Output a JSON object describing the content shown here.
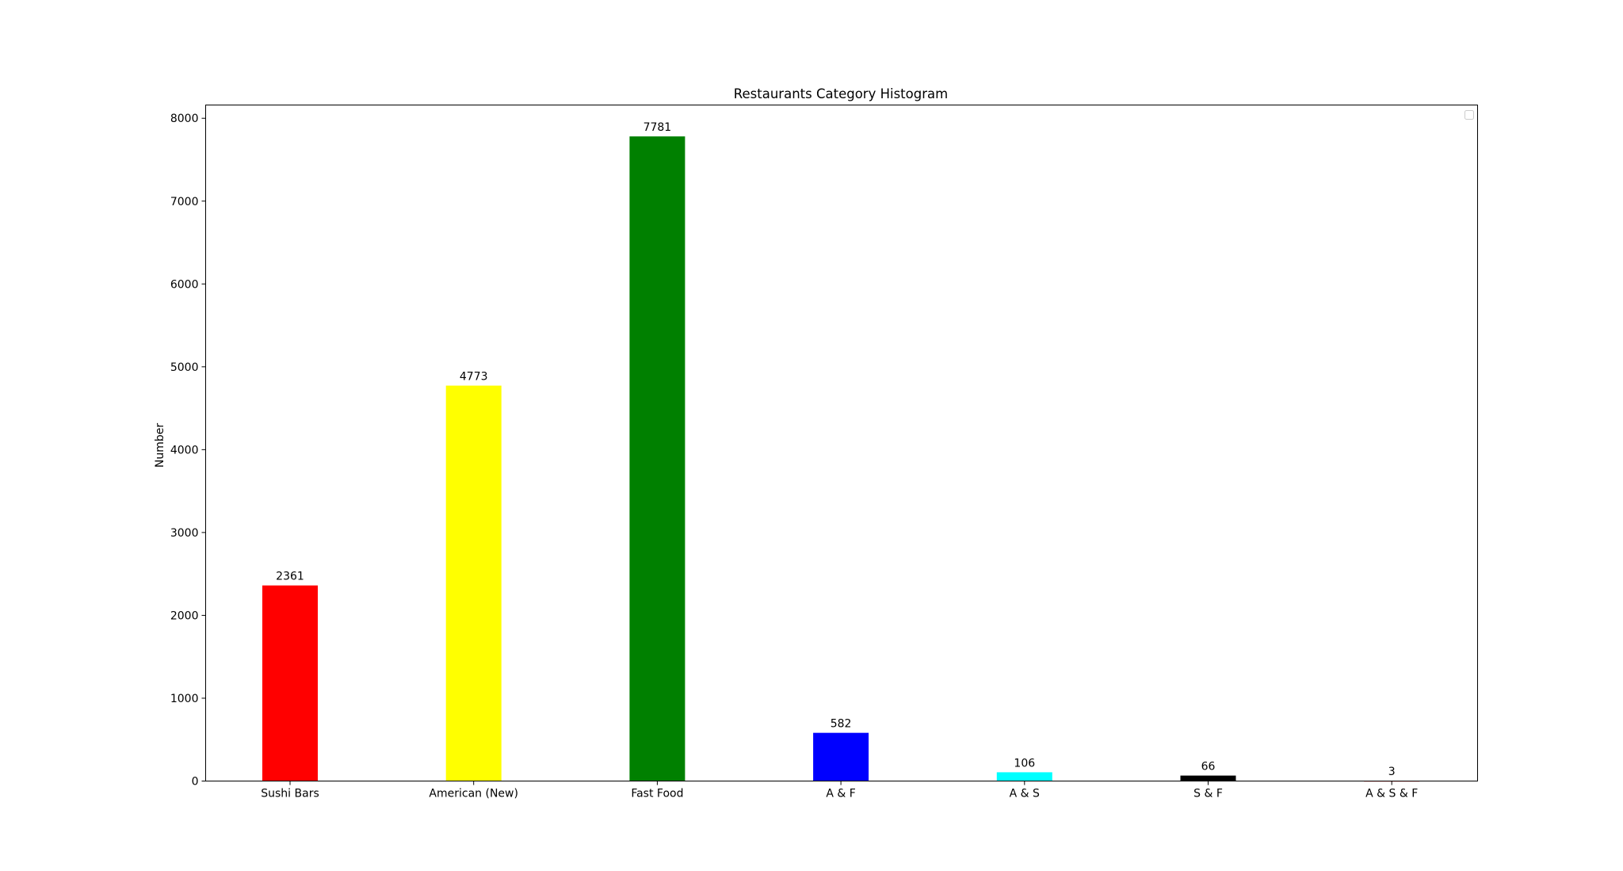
{
  "chart_data": {
    "type": "bar",
    "title": "Restaurants Category Histogram",
    "xlabel": "",
    "ylabel": "Number",
    "categories": [
      "Sushi Bars",
      "American (New)",
      "Fast Food",
      "A & F",
      "A & S",
      "S & F",
      "A & S & F"
    ],
    "values": [
      2361,
      4773,
      7781,
      582,
      106,
      66,
      3
    ],
    "value_labels": [
      "2361",
      "4773",
      "7781",
      "582",
      "106",
      "66",
      "3"
    ],
    "colors": [
      "#ff0000",
      "#ffff00",
      "#008000",
      "#0000ff",
      "#00ffff",
      "#000000",
      "#ff0000"
    ],
    "ylim": [
      0,
      8160
    ],
    "yticks": [
      0,
      1000,
      2000,
      3000,
      4000,
      5000,
      6000,
      7000,
      8000
    ],
    "ytick_labels": [
      "0",
      "1000",
      "2000",
      "3000",
      "4000",
      "5000",
      "6000",
      "7000",
      "8000"
    ],
    "grid": false,
    "legend": "top-right (empty)"
  }
}
